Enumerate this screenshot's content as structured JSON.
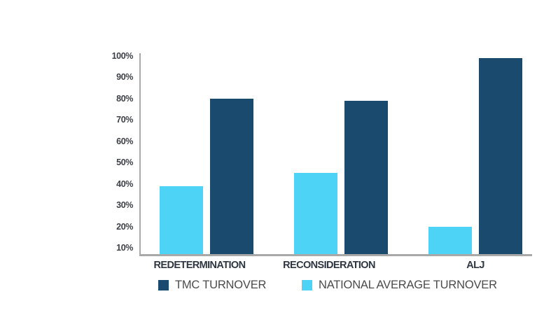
{
  "chart_data": {
    "type": "bar",
    "categories": [
      "REDETERMINATION",
      "RECONSIDERATION",
      "ALJ"
    ],
    "series": [
      {
        "name": "TMC TURNOVER",
        "color": "#1a4a6e",
        "values": [
          80,
          79,
          99
        ]
      },
      {
        "name": "NATIONAL AVERAGE TURNOVER",
        "color": "#4dd3f5",
        "values": [
          39,
          45,
          20
        ]
      }
    ],
    "y_ticks": [
      {
        "label": "100%",
        "value": 100
      },
      {
        "label": "90%",
        "value": 90
      },
      {
        "label": "80%",
        "value": 80
      },
      {
        "label": "70%",
        "value": 70
      },
      {
        "label": "60%",
        "value": 60
      },
      {
        "label": "50%",
        "value": 50
      },
      {
        "label": "40%",
        "value": 40
      },
      {
        "label": "30%",
        "value": 30
      },
      {
        "label": "20%",
        "value": 20
      },
      {
        "label": "10%",
        "value": 10
      }
    ],
    "ylim": [
      10,
      100
    ],
    "grid": false,
    "legend_position": "bottom"
  },
  "colors": {
    "background": "#ffffff",
    "axis": "#a8a8a8",
    "tick_label": "#3d4047",
    "category_label": "#2e3641",
    "legend_label": "#4b4b4b"
  }
}
